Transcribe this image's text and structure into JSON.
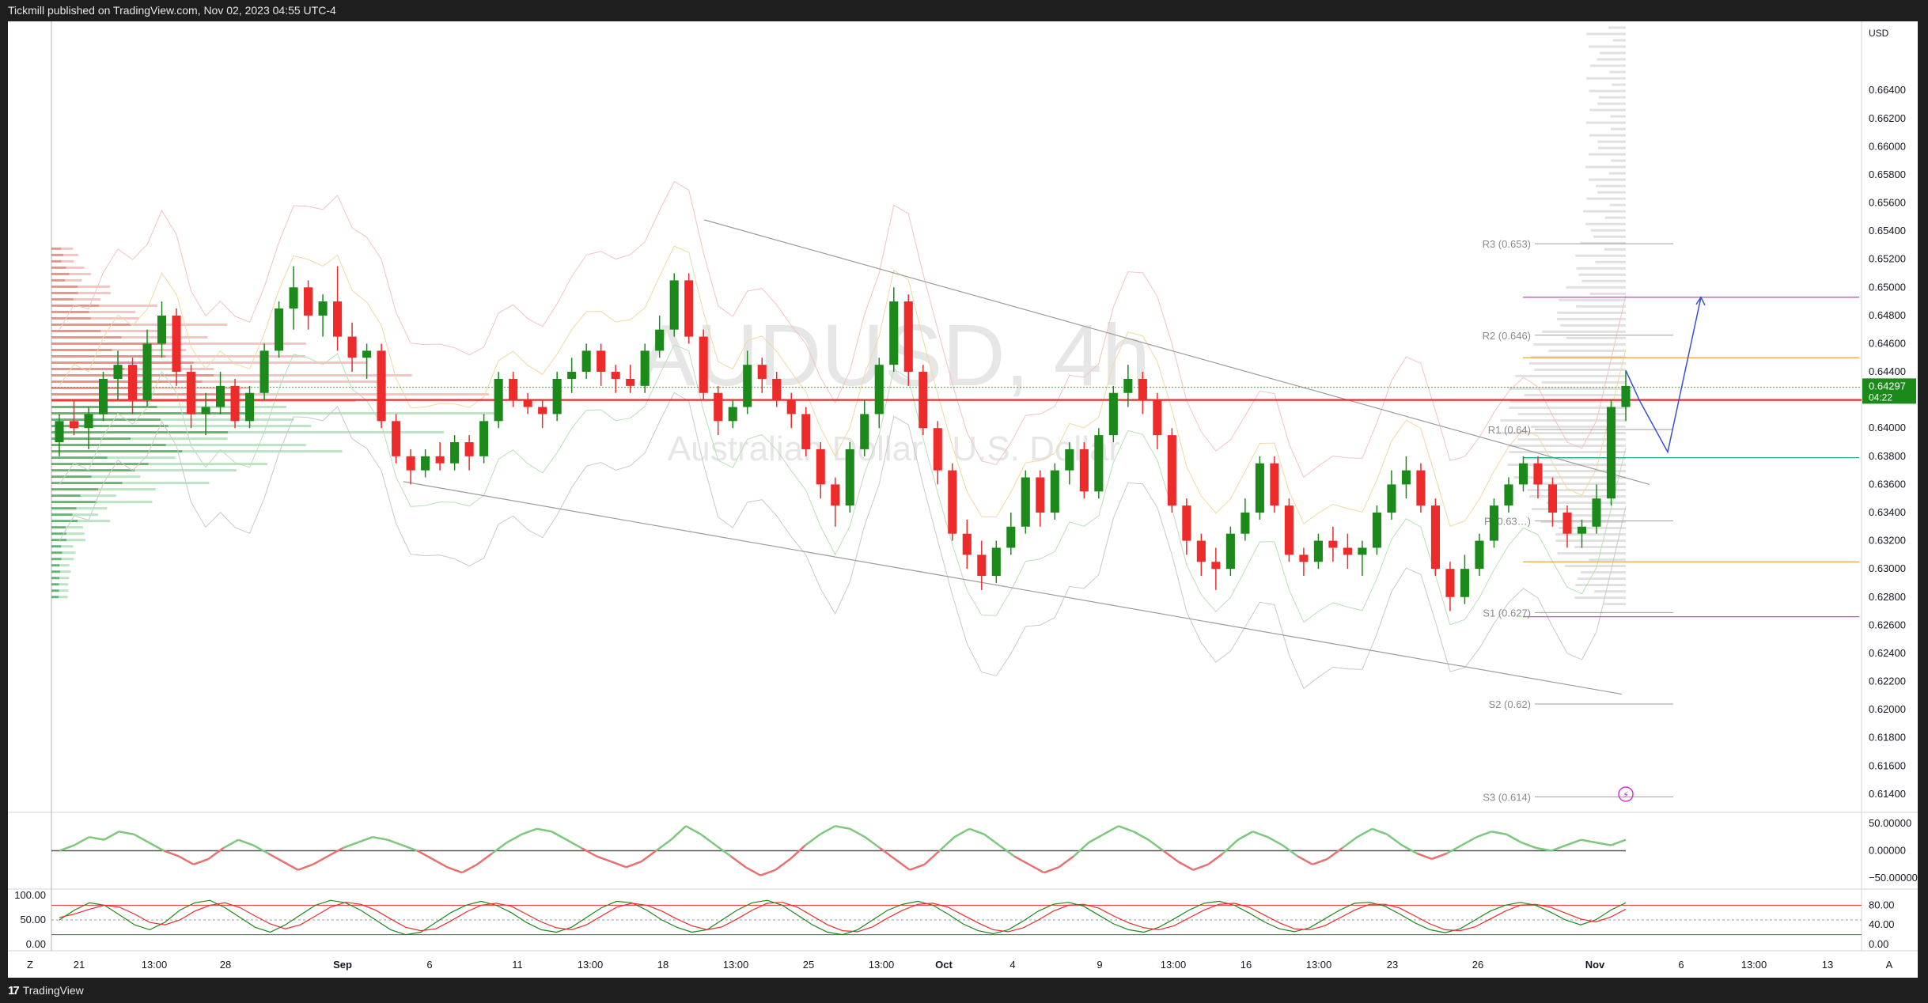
{
  "header": {
    "publisher_text": "Tickmill published on TradingView.com, Nov 02, 2023 04:55 UTC-4"
  },
  "footer": {
    "brand": "TradingView"
  },
  "watermark": {
    "symbol": "AUDUSD, 4h",
    "name": "Australian Dollar / U.S. Dollar"
  },
  "colors": {
    "up": "#1b8a1b",
    "down": "#ee2b2b",
    "accent": "#2962ff",
    "pivot": "#9e9e9e",
    "projection": "#3a4fd8",
    "magenta": "#d633d6"
  },
  "chart_data": {
    "type": "candlestick",
    "currency": "USD",
    "price_axis": {
      "min": 0.6127,
      "max": 0.6689,
      "ticks": [
        "0.66400",
        "0.66200",
        "0.66000",
        "0.65800",
        "0.65600",
        "0.65400",
        "0.65200",
        "0.65000",
        "0.64800",
        "0.64600",
        "0.64400",
        "0.64200",
        "0.64000",
        "0.63800",
        "0.63600",
        "0.63400",
        "0.63200",
        "0.63000",
        "0.62800",
        "0.62600",
        "0.62400",
        "0.62200",
        "0.62000",
        "0.61800",
        "0.61600",
        "0.61400"
      ]
    },
    "last_price": {
      "value": "0.64297",
      "countdown": "04:22"
    },
    "time_axis": {
      "labels": [
        "Z",
        "21",
        "13:00",
        "28",
        "Sep",
        "6",
        "11",
        "13:00",
        "18",
        "13:00",
        "25",
        "13:00",
        "Oct",
        "4",
        "9",
        "13:00",
        "16",
        "13:00",
        "23",
        "26",
        "Nov",
        "6",
        "13:00",
        "13",
        "A"
      ]
    },
    "pivot_levels": [
      {
        "label": "R3 (0.653)",
        "value": 0.6531
      },
      {
        "label": "R2 (0.646)",
        "value": 0.6466
      },
      {
        "label": "R1 (0.64)",
        "value": 0.6399
      },
      {
        "label": "P (0.63…)",
        "value": 0.6334
      },
      {
        "label": "S1 (0.627)",
        "value": 0.6269
      },
      {
        "label": "S2 (0.62)",
        "value": 0.6204
      },
      {
        "label": "S3 (0.614)",
        "value": 0.6138
      }
    ],
    "horizontal_levels": [
      {
        "value": 0.642,
        "color": "#ee2b2b"
      },
      {
        "value": 0.6493,
        "color": "#d633d6"
      },
      {
        "value": 0.6266,
        "color": "#d633d6"
      },
      {
        "value": 0.645,
        "color": "#f0a040"
      },
      {
        "value": 0.6305,
        "color": "#f0a040"
      },
      {
        "value": 0.6379,
        "color": "#26a69a"
      }
    ],
    "channel": {
      "upper": [
        [
          0.6548,
          0.636
        ]
      ],
      "lower": [
        [
          0.6362,
          0.6211
        ]
      ]
    },
    "projection_path": [
      0.6441,
      0.642,
      0.6383,
      0.6493
    ],
    "candles": [
      [
        0.639,
        0.641,
        0.638,
        0.6405
      ],
      [
        0.6405,
        0.642,
        0.6395,
        0.64
      ],
      [
        0.64,
        0.6415,
        0.6385,
        0.641
      ],
      [
        0.641,
        0.644,
        0.6405,
        0.6435
      ],
      [
        0.6435,
        0.6455,
        0.642,
        0.6445
      ],
      [
        0.6445,
        0.645,
        0.641,
        0.642
      ],
      [
        0.642,
        0.647,
        0.6415,
        0.646
      ],
      [
        0.646,
        0.649,
        0.645,
        0.648
      ],
      [
        0.648,
        0.6485,
        0.643,
        0.644
      ],
      [
        0.644,
        0.6445,
        0.64,
        0.641
      ],
      [
        0.641,
        0.6425,
        0.6395,
        0.6415
      ],
      [
        0.6415,
        0.644,
        0.641,
        0.643
      ],
      [
        0.643,
        0.6435,
        0.64,
        0.6405
      ],
      [
        0.6405,
        0.643,
        0.64,
        0.6425
      ],
      [
        0.6425,
        0.646,
        0.642,
        0.6455
      ],
      [
        0.6455,
        0.649,
        0.645,
        0.6485
      ],
      [
        0.6485,
        0.6515,
        0.647,
        0.65
      ],
      [
        0.65,
        0.6505,
        0.647,
        0.648
      ],
      [
        0.648,
        0.6495,
        0.6465,
        0.649
      ],
      [
        0.649,
        0.6515,
        0.6455,
        0.6465
      ],
      [
        0.6465,
        0.6475,
        0.644,
        0.645
      ],
      [
        0.645,
        0.646,
        0.6435,
        0.6455
      ],
      [
        0.6455,
        0.646,
        0.64,
        0.6405
      ],
      [
        0.6405,
        0.641,
        0.6375,
        0.638
      ],
      [
        0.638,
        0.6385,
        0.636,
        0.637
      ],
      [
        0.637,
        0.6385,
        0.6365,
        0.638
      ],
      [
        0.638,
        0.639,
        0.637,
        0.6375
      ],
      [
        0.6375,
        0.6395,
        0.637,
        0.639
      ],
      [
        0.639,
        0.6395,
        0.637,
        0.638
      ],
      [
        0.638,
        0.641,
        0.6375,
        0.6405
      ],
      [
        0.6405,
        0.644,
        0.64,
        0.6435
      ],
      [
        0.6435,
        0.644,
        0.6415,
        0.642
      ],
      [
        0.642,
        0.6425,
        0.641,
        0.6415
      ],
      [
        0.6415,
        0.642,
        0.64,
        0.641
      ],
      [
        0.641,
        0.644,
        0.6405,
        0.6435
      ],
      [
        0.6435,
        0.645,
        0.6425,
        0.644
      ],
      [
        0.644,
        0.646,
        0.6435,
        0.6455
      ],
      [
        0.6455,
        0.646,
        0.643,
        0.644
      ],
      [
        0.644,
        0.6445,
        0.6425,
        0.6435
      ],
      [
        0.6435,
        0.6445,
        0.6425,
        0.643
      ],
      [
        0.643,
        0.646,
        0.6425,
        0.6455
      ],
      [
        0.6455,
        0.648,
        0.645,
        0.647
      ],
      [
        0.647,
        0.651,
        0.6465,
        0.6505
      ],
      [
        0.6505,
        0.651,
        0.646,
        0.6465
      ],
      [
        0.6465,
        0.647,
        0.642,
        0.6425
      ],
      [
        0.6425,
        0.643,
        0.6395,
        0.6405
      ],
      [
        0.6405,
        0.642,
        0.64,
        0.6415
      ],
      [
        0.6415,
        0.6455,
        0.641,
        0.6445
      ],
      [
        0.6445,
        0.645,
        0.6425,
        0.6435
      ],
      [
        0.6435,
        0.644,
        0.6415,
        0.642
      ],
      [
        0.642,
        0.6425,
        0.64,
        0.641
      ],
      [
        0.641,
        0.6415,
        0.638,
        0.6385
      ],
      [
        0.6385,
        0.639,
        0.635,
        0.636
      ],
      [
        0.636,
        0.6365,
        0.633,
        0.6345
      ],
      [
        0.6345,
        0.639,
        0.634,
        0.6385
      ],
      [
        0.6385,
        0.642,
        0.638,
        0.641
      ],
      [
        0.641,
        0.645,
        0.64,
        0.6445
      ],
      [
        0.6445,
        0.65,
        0.644,
        0.649
      ],
      [
        0.649,
        0.6495,
        0.643,
        0.644
      ],
      [
        0.644,
        0.6445,
        0.6395,
        0.64
      ],
      [
        0.64,
        0.6405,
        0.636,
        0.637
      ],
      [
        0.637,
        0.6375,
        0.632,
        0.6325
      ],
      [
        0.6325,
        0.6335,
        0.63,
        0.631
      ],
      [
        0.631,
        0.632,
        0.6285,
        0.6295
      ],
      [
        0.6295,
        0.632,
        0.629,
        0.6315
      ],
      [
        0.6315,
        0.634,
        0.631,
        0.633
      ],
      [
        0.633,
        0.637,
        0.6325,
        0.6365
      ],
      [
        0.6365,
        0.637,
        0.633,
        0.634
      ],
      [
        0.634,
        0.6375,
        0.6335,
        0.637
      ],
      [
        0.637,
        0.639,
        0.636,
        0.6385
      ],
      [
        0.6385,
        0.639,
        0.635,
        0.6355
      ],
      [
        0.6355,
        0.64,
        0.635,
        0.6395
      ],
      [
        0.6395,
        0.643,
        0.639,
        0.6425
      ],
      [
        0.6425,
        0.6445,
        0.6415,
        0.6435
      ],
      [
        0.6435,
        0.644,
        0.641,
        0.642
      ],
      [
        0.642,
        0.6425,
        0.6385,
        0.6395
      ],
      [
        0.6395,
        0.64,
        0.634,
        0.6345
      ],
      [
        0.6345,
        0.635,
        0.631,
        0.632
      ],
      [
        0.632,
        0.6325,
        0.6295,
        0.6305
      ],
      [
        0.6305,
        0.6315,
        0.6285,
        0.63
      ],
      [
        0.63,
        0.633,
        0.6295,
        0.6325
      ],
      [
        0.6325,
        0.635,
        0.632,
        0.634
      ],
      [
        0.634,
        0.638,
        0.6335,
        0.6375
      ],
      [
        0.6375,
        0.638,
        0.634,
        0.6345
      ],
      [
        0.6345,
        0.635,
        0.6305,
        0.631
      ],
      [
        0.631,
        0.6315,
        0.6295,
        0.6305
      ],
      [
        0.6305,
        0.6325,
        0.63,
        0.632
      ],
      [
        0.632,
        0.633,
        0.6305,
        0.6315
      ],
      [
        0.6315,
        0.6325,
        0.63,
        0.631
      ],
      [
        0.631,
        0.632,
        0.6295,
        0.6315
      ],
      [
        0.6315,
        0.6345,
        0.631,
        0.634
      ],
      [
        0.634,
        0.637,
        0.6335,
        0.636
      ],
      [
        0.636,
        0.638,
        0.635,
        0.637
      ],
      [
        0.637,
        0.6375,
        0.634,
        0.6345
      ],
      [
        0.6345,
        0.635,
        0.6295,
        0.63
      ],
      [
        0.63,
        0.6305,
        0.627,
        0.628
      ],
      [
        0.628,
        0.631,
        0.6275,
        0.63
      ],
      [
        0.63,
        0.6325,
        0.6295,
        0.632
      ],
      [
        0.632,
        0.635,
        0.6315,
        0.6345
      ],
      [
        0.6345,
        0.6365,
        0.634,
        0.636
      ],
      [
        0.636,
        0.638,
        0.6355,
        0.6375
      ],
      [
        0.6375,
        0.638,
        0.635,
        0.636
      ],
      [
        0.636,
        0.6365,
        0.633,
        0.634
      ],
      [
        0.634,
        0.6345,
        0.6315,
        0.6325
      ],
      [
        0.6325,
        0.6335,
        0.6315,
        0.633
      ],
      [
        0.633,
        0.636,
        0.6325,
        0.635
      ],
      [
        0.635,
        0.642,
        0.6345,
        0.6415
      ],
      [
        0.6415,
        0.6441,
        0.6405,
        0.643
      ]
    ],
    "oscillator_1": {
      "ticks": [
        "50.00000",
        "0.00000",
        "−50.00000"
      ],
      "min": -70,
      "max": 70,
      "values": [
        0,
        10,
        25,
        20,
        35,
        30,
        15,
        0,
        -10,
        -25,
        -15,
        5,
        20,
        10,
        -5,
        -20,
        -35,
        -25,
        -10,
        5,
        15,
        25,
        20,
        10,
        0,
        -15,
        -30,
        -40,
        -25,
        -5,
        15,
        30,
        40,
        35,
        20,
        5,
        -10,
        -20,
        -30,
        -20,
        0,
        20,
        45,
        30,
        10,
        -10,
        -30,
        -45,
        -35,
        -15,
        10,
        30,
        45,
        40,
        25,
        5,
        -15,
        -35,
        -25,
        0,
        25,
        40,
        30,
        10,
        -10,
        -25,
        -40,
        -30,
        -10,
        15,
        30,
        45,
        35,
        20,
        0,
        -20,
        -35,
        -25,
        -5,
        20,
        35,
        25,
        10,
        -10,
        -25,
        -15,
        5,
        25,
        40,
        30,
        10,
        -5,
        -15,
        -5,
        10,
        25,
        35,
        30,
        15,
        5,
        0,
        10,
        20,
        15,
        10,
        20
      ]
    },
    "oscillator_2": {
      "ticks": [
        "100.00",
        "50.00",
        "0.00"
      ],
      "right_ticks": [
        "80.00",
        "40.00",
        "0.00"
      ],
      "min": 0,
      "max": 100,
      "k": [
        50,
        70,
        85,
        80,
        60,
        40,
        30,
        45,
        70,
        85,
        90,
        75,
        55,
        35,
        25,
        40,
        60,
        80,
        90,
        85,
        70,
        50,
        30,
        20,
        25,
        45,
        65,
        80,
        88,
        80,
        65,
        45,
        30,
        25,
        35,
        55,
        75,
        88,
        85,
        70,
        50,
        35,
        25,
        30,
        50,
        70,
        85,
        90,
        80,
        60,
        40,
        25,
        20,
        30,
        50,
        70,
        82,
        88,
        80,
        62,
        42,
        28,
        22,
        30,
        48,
        68,
        82,
        86,
        78,
        60,
        42,
        30,
        25,
        35,
        52,
        70,
        84,
        88,
        80,
        64,
        46,
        32,
        26,
        34,
        52,
        70,
        84,
        86,
        78,
        62,
        44,
        30,
        24,
        32,
        50,
        68,
        80,
        86,
        80,
        66,
        50,
        40,
        50,
        70,
        85
      ],
      "d": [
        55,
        62,
        72,
        80,
        76,
        62,
        45,
        40,
        50,
        68,
        80,
        85,
        75,
        58,
        42,
        32,
        40,
        58,
        76,
        86,
        82,
        70,
        52,
        35,
        28,
        32,
        48,
        66,
        80,
        84,
        78,
        62,
        46,
        34,
        30,
        40,
        58,
        76,
        84,
        80,
        68,
        52,
        38,
        30,
        36,
        52,
        70,
        84,
        86,
        76,
        58,
        40,
        28,
        26,
        36,
        54,
        70,
        82,
        84,
        76,
        60,
        44,
        30,
        26,
        34,
        50,
        68,
        80,
        82,
        74,
        58,
        44,
        34,
        30,
        38,
        54,
        70,
        82,
        84,
        76,
        60,
        44,
        32,
        30,
        38,
        54,
        70,
        82,
        82,
        74,
        58,
        42,
        30,
        28,
        36,
        52,
        68,
        80,
        82,
        76,
        64,
        52,
        46,
        56,
        72
      ]
    }
  }
}
